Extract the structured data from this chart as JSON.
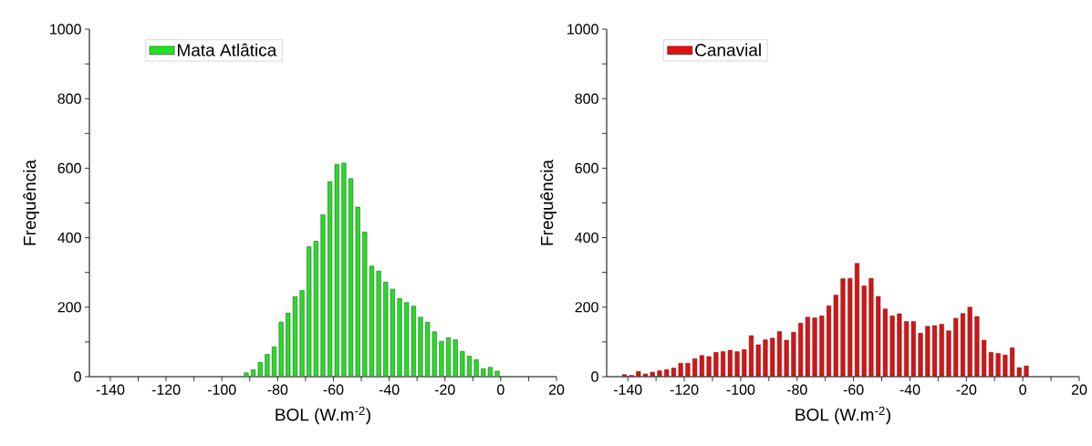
{
  "chart_data": [
    {
      "type": "histogram",
      "xlabel": "BOL (W.m$^{-2}$)",
      "ylabel": "Frequência",
      "legend": "top left",
      "bins": [
        -92.5,
        -90,
        -87.5,
        -85,
        -82.5,
        -80,
        -77.5,
        -75,
        -72.5,
        -70,
        -67.5,
        -65,
        -62.5,
        -60,
        -57.5,
        -55,
        -52.5,
        -50,
        -47.5,
        -45,
        -42.5,
        -40,
        -37.5,
        -35,
        -32.5,
        -30,
        -27.5,
        -25,
        -22.5,
        -20,
        -17.5,
        -15,
        -12.5,
        -10,
        -7.5,
        -5,
        -2.5,
        0
      ],
      "series": [
        {
          "name": "Mata Atlâtica",
          "color": "#22e022",
          "values": [
            11,
            20,
            41,
            64,
            86,
            157,
            183,
            230,
            248,
            374,
            390,
            466,
            561,
            611,
            615,
            570,
            488,
            416,
            318,
            304,
            272,
            252,
            225,
            213,
            203,
            171,
            157,
            129,
            102,
            112,
            106,
            73,
            59,
            49,
            23,
            27,
            16
          ]
        }
      ],
      "xlim": [
        -147.5,
        20
      ],
      "ylim": [
        0,
        1000
      ],
      "xticks": [
        -140,
        {
          "value": -130,
          "label": null
        },
        -120,
        {
          "value": -110,
          "label": null
        },
        -100,
        {
          "value": -90,
          "label": null
        },
        -80,
        {
          "value": -70,
          "label": null
        },
        -60,
        {
          "value": -50,
          "label": null
        },
        -40,
        {
          "value": -30,
          "label": null
        },
        -20,
        {
          "value": -10,
          "label": null
        },
        0,
        {
          "value": 10,
          "label": null
        },
        20
      ],
      "yticks": [
        0,
        {
          "value": 100,
          "label": null
        },
        200,
        {
          "value": 300,
          "label": null
        },
        400,
        {
          "value": 500,
          "label": null
        },
        600,
        {
          "value": 700,
          "label": null
        },
        800,
        {
          "value": 900,
          "label": null
        },
        1000
      ]
    },
    {
      "type": "histogram",
      "xlabel": "BOL (W.m$^{-2}$)",
      "ylabel": "Frequência",
      "legend": "top left",
      "bins": [
        -142.5,
        -140,
        -137.5,
        -135,
        -132.5,
        -130,
        -127.5,
        -125,
        -122.5,
        -120,
        -117.5,
        -115,
        -112.5,
        -110,
        -107.5,
        -105,
        -102.5,
        -100,
        -97.5,
        -95,
        -92.5,
        -90,
        -87.5,
        -85,
        -82.5,
        -80,
        -77.5,
        -75,
        -72.5,
        -70,
        -67.5,
        -65,
        -62.5,
        -60,
        -57.5,
        -55,
        -52.5,
        -50,
        -47.5,
        -45,
        -42.5,
        -40,
        -37.5,
        -35,
        -32.5,
        -30,
        -27.5,
        -25,
        -22.5,
        -20,
        -17.5,
        -15,
        -12.5,
        -10,
        -7.5,
        -5,
        -2.5,
        0,
        2.5
      ],
      "series": [
        {
          "name": "Canavial",
          "color": "#dd1111",
          "values": [
            6,
            4,
            15,
            8,
            13,
            17,
            20,
            25,
            39,
            39,
            52,
            61,
            58,
            70,
            72,
            76,
            72,
            78,
            118,
            92,
            106,
            111,
            130,
            105,
            128,
            154,
            171,
            169,
            175,
            204,
            235,
            282,
            283,
            326,
            261,
            283,
            231,
            195,
            175,
            181,
            159,
            159,
            125,
            145,
            147,
            151,
            132,
            168,
            182,
            200,
            173,
            105,
            70,
            67,
            62,
            83,
            26,
            31
          ]
        }
      ],
      "xlim": [
        -147.5,
        20
      ],
      "ylim": [
        0,
        1000
      ],
      "xticks": [
        -140,
        {
          "value": -130,
          "label": null
        },
        -120,
        {
          "value": -110,
          "label": null
        },
        -100,
        {
          "value": -90,
          "label": null
        },
        -80,
        {
          "value": -70,
          "label": null
        },
        -60,
        {
          "value": -50,
          "label": null
        },
        -40,
        {
          "value": -30,
          "label": null
        },
        -20,
        {
          "value": -10,
          "label": null
        },
        0,
        {
          "value": 10,
          "label": null
        },
        20
      ],
      "yticks": [
        0,
        {
          "value": 100,
          "label": null
        },
        200,
        {
          "value": 300,
          "label": null
        },
        400,
        {
          "value": 500,
          "label": null
        },
        600,
        {
          "value": 700,
          "label": null
        },
        800,
        {
          "value": 900,
          "label": null
        },
        1000
      ]
    }
  ]
}
